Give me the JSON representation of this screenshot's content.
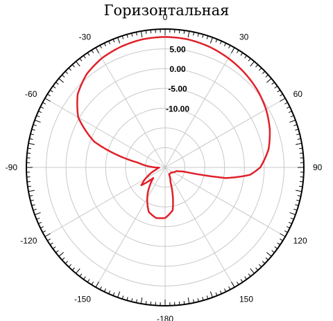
{
  "chart_data": {
    "type": "polar-line",
    "title": "Горизонтальная",
    "angle_labels": [
      {
        "angle": 0,
        "label": "0"
      },
      {
        "angle": 30,
        "label": "30"
      },
      {
        "angle": 60,
        "label": "60"
      },
      {
        "angle": 90,
        "label": "90"
      },
      {
        "angle": 120,
        "label": "120"
      },
      {
        "angle": 150,
        "label": "150"
      },
      {
        "angle": 180,
        "label": "-180"
      },
      {
        "angle": 210,
        "label": "-150"
      },
      {
        "angle": 240,
        "label": "-120"
      },
      {
        "angle": 270,
        "label": "-90"
      },
      {
        "angle": 300,
        "label": "-60"
      },
      {
        "angle": 330,
        "label": "-30"
      }
    ],
    "radial_labels": [
      {
        "value": 5,
        "label": "5.00"
      },
      {
        "value": 0,
        "label": "0.00"
      },
      {
        "value": -5,
        "label": "-5.00"
      },
      {
        "value": -10,
        "label": "-10.00"
      }
    ],
    "radial_range": [
      -25,
      10
    ],
    "grid": true,
    "series": [
      {
        "color": "#e0202a",
        "points": [
          [
            0,
            8.0
          ],
          [
            10,
            7.9
          ],
          [
            20,
            7.5
          ],
          [
            30,
            6.9
          ],
          [
            40,
            6.2
          ],
          [
            50,
            5.4
          ],
          [
            60,
            4.4
          ],
          [
            70,
            3.1
          ],
          [
            80,
            1.5
          ],
          [
            90,
            -1.0
          ],
          [
            95,
            -3.5
          ],
          [
            100,
            -9.5
          ],
          [
            103,
            -20.5
          ],
          [
            108,
            -22.0
          ],
          [
            130,
            -23.0
          ],
          [
            150,
            -23.0
          ],
          [
            160,
            -21.0
          ],
          [
            170,
            -14.0
          ],
          [
            180,
            -12.2
          ],
          [
            190,
            -12.0
          ],
          [
            200,
            -13.0
          ],
          [
            210,
            -16.0
          ],
          [
            220,
            -19.0
          ],
          [
            228,
            -21.0
          ],
          [
            233,
            -17.5
          ],
          [
            245,
            -20.5
          ],
          [
            255,
            -22.5
          ],
          [
            268,
            -23.5
          ],
          [
            280,
            -18.0
          ],
          [
            290,
            -6.0
          ],
          [
            300,
            0.3
          ],
          [
            310,
            3.8
          ],
          [
            320,
            5.8
          ],
          [
            330,
            6.9
          ],
          [
            340,
            7.5
          ],
          [
            350,
            7.9
          ],
          [
            360,
            8.0
          ]
        ]
      }
    ]
  }
}
